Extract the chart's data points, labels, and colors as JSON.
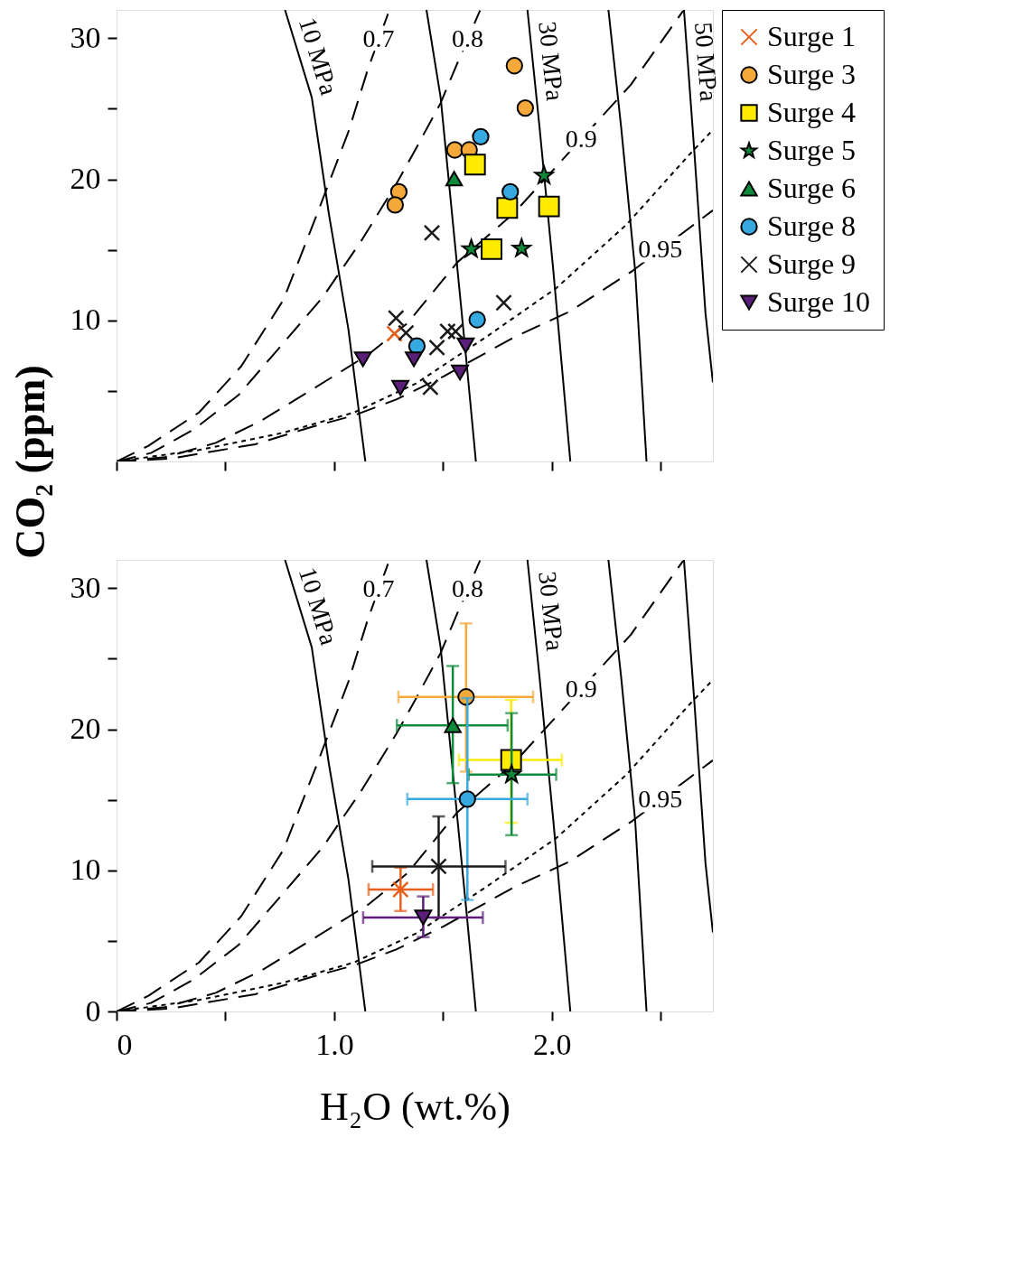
{
  "chart_data": [
    {
      "type": "scatter",
      "ylabel": "CO₂ (ppm)",
      "xlim": [
        0,
        2.74
      ],
      "ylim": [
        0,
        32
      ],
      "grid": false,
      "legend": "right",
      "tick_labels": "y",
      "xticks": [
        {
          "value": 0,
          "label": null
        },
        {
          "value": 0.5,
          "label": null
        },
        {
          "value": 1,
          "label": null
        },
        {
          "value": 1.5,
          "label": null
        },
        {
          "value": 2,
          "label": null
        },
        {
          "value": 2.5,
          "label": null
        }
      ],
      "yticks": [
        {
          "value": 5,
          "label": null
        },
        10,
        {
          "value": 15,
          "label": null
        },
        20,
        {
          "value": 25,
          "label": null
        },
        30
      ],
      "annotations": [
        {
          "text": "0.7",
          "x": 1.204,
          "y": 29.9
        },
        {
          "text": "0.8",
          "x": 1.613,
          "y": 29.9
        },
        {
          "text": "0.9",
          "x": 2.135,
          "y": 22.8
        },
        {
          "text": "0.95",
          "x": 2.498,
          "y": 15.0
        }
      ],
      "series": [
        {
          "type": "line",
          "name": "10 MPa",
          "color": "#000000",
          "line_style": "solid",
          "marker": "none",
          "x": [
            0.774,
            0.897,
            0.975,
            1.065,
            1.143
          ],
          "values": [
            32,
            25.8,
            17.6,
            9.4,
            0
          ]
        },
        {
          "type": "line",
          "color": "#000000",
          "line_style": "solid",
          "marker": "none",
          "x": [
            1.424,
            1.489,
            1.554,
            1.606,
            1.651
          ],
          "values": [
            32,
            25.8,
            15.56,
            7.36,
            0
          ]
        },
        {
          "type": "line",
          "name": "30 MPa",
          "color": "#000000",
          "line_style": "solid",
          "marker": "none",
          "x": [
            1.888,
            1.943,
            2.007,
            2.085
          ],
          "values": [
            32,
            23.76,
            13.5,
            0
          ]
        },
        {
          "type": "line",
          "color": "#000000",
          "line_style": "solid",
          "marker": "none",
          "x": [
            2.26,
            2.318,
            2.383,
            2.435
          ],
          "values": [
            32,
            23.76,
            13.5,
            0
          ]
        },
        {
          "type": "line",
          "name": "50 MPa",
          "color": "#000000",
          "line_style": "solid",
          "marker": "none",
          "x": [
            2.607,
            2.655,
            2.706,
            2.74
          ],
          "values": [
            32,
            21.9,
            10.5,
            5.6
          ]
        },
        {
          "type": "line",
          "color": "#000000",
          "line_style": "dashed",
          "marker": "none",
          "x": [
            0,
            0.145,
            0.379,
            0.573,
            0.767,
            0.923,
            1.065,
            1.156,
            1.253
          ],
          "values": [
            0,
            1.1,
            3.47,
            6.75,
            11.46,
            17.6,
            23.35,
            27.86,
            31.96
          ]
        },
        {
          "type": "line",
          "color": "#000000",
          "line_style": "dashed",
          "marker": "none",
          "x": [
            0,
            0.158,
            0.353,
            0.56,
            0.767,
            0.949,
            1.13,
            1.285,
            1.373,
            1.489,
            1.567,
            1.67
          ],
          "values": [
            0,
            0.6,
            2.25,
            4.7,
            8.4,
            11.67,
            15.77,
            19.66,
            22.1,
            25.4,
            28.27,
            31.96
          ]
        },
        {
          "type": "line",
          "color": "#000000",
          "line_style": "dashed",
          "marker": "none",
          "x": [
            0,
            0.223,
            0.456,
            0.663,
            0.923,
            1.156,
            1.337,
            1.567,
            1.826,
            2.15,
            2.363,
            2.603
          ],
          "values": [
            0,
            0.3,
            1.32,
            2.87,
            5.33,
            7.57,
            9.8,
            14.13,
            17.6,
            23.1,
            26.7,
            31.93
          ]
        },
        {
          "type": "line",
          "color": "#000000",
          "line_style": "dashed",
          "marker": "none",
          "x": [
            0,
            0.249,
            0.637,
            0.897,
            1.091,
            1.285,
            1.502,
            1.826,
            2.085,
            2.37,
            2.74
          ],
          "values": [
            0,
            0.2,
            1.22,
            2.45,
            3.26,
            4.39,
            6.03,
            8.8,
            10.65,
            13.5,
            17.8
          ]
        },
        {
          "type": "line",
          "color": "#000000",
          "line_style": "dotted",
          "marker": "none",
          "x": [
            0,
            0.379,
            0.767,
            1.091,
            1.376,
            1.696,
            2.02,
            2.344,
            2.629,
            2.74
          ],
          "values": [
            0,
            0.81,
            2.04,
            3.47,
            5.53,
            8.8,
            12.28,
            16.8,
            21.7,
            23.5
          ]
        },
        {
          "name": "Surge 1",
          "color": "#e8601c",
          "marker": "cross",
          "x": [
            1.277
          ],
          "values": [
            9.06
          ]
        },
        {
          "name": "Surge 3",
          "color": "#f5a93a",
          "marker": "circle",
          "x": [
            1.828,
            1.878,
            1.554,
            1.62,
            1.297,
            1.28
          ],
          "values": [
            28.05,
            25.05,
            22.08,
            22.08,
            19.11,
            18.18
          ]
        },
        {
          "name": "Surge 4",
          "color": "#ffeb00",
          "marker": "square",
          "x": [
            1.647,
            1.795,
            1.987,
            1.723
          ],
          "values": [
            21.04,
            17.97,
            18.07,
            15.05
          ]
        },
        {
          "name": "Surge 5",
          "color": "#0f8a3b",
          "marker": "star",
          "x": [
            1.964,
            1.63,
            1.861
          ],
          "values": [
            20.26,
            15.05,
            15.1
          ]
        },
        {
          "name": "Surge 6",
          "color": "#0f8a3b",
          "marker": "triangle",
          "x": [
            1.551
          ],
          "values": [
            20.05
          ]
        },
        {
          "name": "Surge 8",
          "color": "#36a9e1",
          "marker": "circle",
          "x": [
            1.673,
            1.809,
            1.657,
            1.38
          ],
          "values": [
            23.02,
            19.11,
            10.05,
            8.18
          ]
        },
        {
          "name": "Surge 9",
          "color": "#1a1a1a",
          "marker": "cross",
          "x": [
            1.449,
            1.284,
            1.33,
            1.521,
            1.558,
            1.472,
            1.779,
            1.442
          ],
          "values": [
            16.2,
            10.16,
            9.11,
            9.22,
            9.22,
            8.07,
            11.25,
            5.26
          ]
        },
        {
          "name": "Surge 10",
          "color": "#5b1f7a",
          "marker": "triangle-down",
          "x": [
            1.132,
            1.366,
            1.304,
            1.604,
            1.578
          ],
          "values": [
            7.24,
            7.24,
            5.21,
            8.23,
            6.3
          ]
        }
      ]
    },
    {
      "type": "scatter",
      "xlabel": "H₂O (wt.%)",
      "xlim": [
        0,
        2.74
      ],
      "ylim": [
        0,
        32
      ],
      "grid": false,
      "xticks": [
        0,
        {
          "value": 0.5,
          "label": null
        },
        {
          "value": 1,
          "label": "1.0"
        },
        {
          "value": 1.5,
          "label": null
        },
        {
          "value": 2,
          "label": "2.0"
        },
        {
          "value": 2.5,
          "label": null
        }
      ],
      "yticks": [
        0,
        {
          "value": 5,
          "label": null
        },
        10,
        {
          "value": 15,
          "label": null
        },
        20,
        {
          "value": 25,
          "label": null
        },
        30
      ],
      "annotations": [
        {
          "text": "0.7",
          "x": 1.204,
          "y": 29.9
        },
        {
          "text": "0.8",
          "x": 1.613,
          "y": 29.9
        },
        {
          "text": "0.9",
          "x": 2.135,
          "y": 22.8
        },
        {
          "text": "0.95",
          "x": 2.498,
          "y": 15.0
        }
      ],
      "series": [
        {
          "type": "line",
          "name": "10 MPa",
          "color": "#000000",
          "line_style": "solid",
          "marker": "none",
          "x": [
            0.774,
            0.897,
            0.975,
            1.065,
            1.143
          ],
          "values": [
            32,
            25.8,
            17.6,
            9.4,
            0
          ]
        },
        {
          "type": "line",
          "color": "#000000",
          "line_style": "solid",
          "marker": "none",
          "x": [
            1.424,
            1.489,
            1.554,
            1.606,
            1.651
          ],
          "values": [
            32,
            25.8,
            15.56,
            7.36,
            0
          ]
        },
        {
          "type": "line",
          "name": "30 MPa",
          "color": "#000000",
          "line_style": "solid",
          "marker": "none",
          "x": [
            1.888,
            1.943,
            2.007,
            2.085
          ],
          "values": [
            32,
            23.76,
            13.5,
            0
          ]
        },
        {
          "type": "line",
          "color": "#000000",
          "line_style": "solid",
          "marker": "none",
          "x": [
            2.26,
            2.318,
            2.383,
            2.435
          ],
          "values": [
            32,
            23.76,
            13.5,
            0
          ]
        },
        {
          "type": "line",
          "color": "#000000",
          "line_style": "solid",
          "marker": "none",
          "x": [
            2.607,
            2.655,
            2.706,
            2.74
          ],
          "values": [
            32,
            21.9,
            10.5,
            5.6
          ]
        },
        {
          "type": "line",
          "color": "#000000",
          "line_style": "dashed",
          "marker": "none",
          "x": [
            0,
            0.145,
            0.379,
            0.573,
            0.767,
            0.923,
            1.065,
            1.156,
            1.253
          ],
          "values": [
            0,
            1.1,
            3.47,
            6.75,
            11.46,
            17.6,
            23.35,
            27.86,
            31.96
          ]
        },
        {
          "type": "line",
          "color": "#000000",
          "line_style": "dashed",
          "marker": "none",
          "x": [
            0,
            0.158,
            0.353,
            0.56,
            0.767,
            0.949,
            1.13,
            1.285,
            1.373,
            1.489,
            1.567,
            1.67
          ],
          "values": [
            0,
            0.6,
            2.25,
            4.7,
            8.4,
            11.67,
            15.77,
            19.66,
            22.1,
            25.4,
            28.27,
            31.96
          ]
        },
        {
          "type": "line",
          "color": "#000000",
          "line_style": "dashed",
          "marker": "none",
          "x": [
            0,
            0.223,
            0.456,
            0.663,
            0.923,
            1.156,
            1.337,
            1.567,
            1.826,
            2.15,
            2.363,
            2.603
          ],
          "values": [
            0,
            0.3,
            1.32,
            2.87,
            5.33,
            7.57,
            9.8,
            14.13,
            17.6,
            23.1,
            26.7,
            31.93
          ]
        },
        {
          "type": "line",
          "color": "#000000",
          "line_style": "dashed",
          "marker": "none",
          "x": [
            0,
            0.249,
            0.637,
            0.897,
            1.091,
            1.285,
            1.502,
            1.826,
            2.085,
            2.37,
            2.74
          ],
          "values": [
            0,
            0.2,
            1.22,
            2.45,
            3.26,
            4.39,
            6.03,
            8.8,
            10.65,
            13.5,
            17.8
          ]
        },
        {
          "type": "line",
          "color": "#000000",
          "line_style": "dotted",
          "marker": "none",
          "x": [
            0,
            0.379,
            0.767,
            1.091,
            1.376,
            1.696,
            2.02,
            2.344,
            2.629,
            2.74
          ],
          "values": [
            0,
            0.81,
            2.04,
            3.47,
            5.53,
            8.8,
            12.28,
            16.8,
            21.7,
            23.5
          ]
        },
        {
          "color": "#e8601c",
          "marker": "cross",
          "x": [
            1.305
          ],
          "values": [
            8.64
          ],
          "xerrors": [
            [
              1.158,
              1.454
            ]
          ],
          "errors": [
            [
              7.12,
              10.19
            ]
          ]
        },
        {
          "color": "#f5a93a",
          "marker": "circle",
          "x": [
            1.606
          ],
          "values": [
            22.29
          ],
          "xerrors": [
            [
              1.295,
              1.914
            ]
          ],
          "errors": [
            [
              17.0,
              27.5
            ]
          ]
        },
        {
          "color": "#ffeb00",
          "marker": "square",
          "x": [
            1.813
          ],
          "values": [
            17.82
          ],
          "xerrors": [
            [
              1.573,
              2.046
            ]
          ],
          "errors": [
            [
              13.37,
              22.08
            ]
          ]
        },
        {
          "color": "#0f8a3b",
          "marker": "star",
          "x": [
            1.815
          ],
          "values": [
            16.79
          ],
          "xerrors": [
            [
              1.618,
              2.02
            ]
          ],
          "errors": [
            [
              12.49,
              21.14
            ]
          ]
        },
        {
          "color": "#0f8a3b",
          "marker": "triangle",
          "x": [
            1.545
          ],
          "values": [
            20.28
          ],
          "xerrors": [
            [
              1.288,
              1.797
            ]
          ],
          "errors": [
            [
              16.18,
              24.48
            ]
          ]
        },
        {
          "color": "#36a9e1",
          "marker": "circle",
          "x": [
            1.612
          ],
          "values": [
            15.05
          ],
          "xerrors": [
            [
              1.336,
              1.888
            ]
          ],
          "errors": [
            [
              7.9,
              22.2
            ]
          ]
        },
        {
          "color": "#1a1a1a",
          "marker": "cross",
          "x": [
            1.48
          ],
          "values": [
            10.28
          ],
          "xerrors": [
            [
              1.175,
              1.787
            ]
          ],
          "errors": [
            [
              6.65,
              13.82
            ]
          ]
        },
        {
          "color": "#5b1f7a",
          "marker": "triangle-down",
          "x": [
            1.409
          ],
          "values": [
            6.65
          ],
          "xerrors": [
            [
              1.133,
              1.683
            ]
          ],
          "errors": [
            [
              5.27,
              8.15
            ]
          ]
        }
      ]
    }
  ]
}
